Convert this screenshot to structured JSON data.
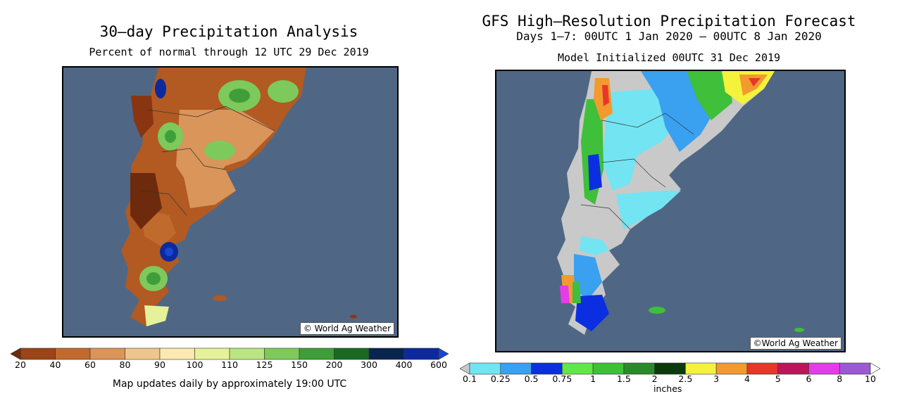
{
  "left_panel": {
    "title": "30–day Precipitation Analysis",
    "subtitle": "Percent of normal through 12 UTC 29 Dec 2019",
    "credit": "© World Ag Weather",
    "legend_labels": [
      "20",
      "40",
      "60",
      "80",
      "90",
      "100",
      "110",
      "125",
      "150",
      "200",
      "300",
      "400",
      "600"
    ],
    "legend_colors": [
      "#6e2a0c",
      "#9a4417",
      "#c06a2e",
      "#d9955a",
      "#efc58e",
      "#fbe9b0",
      "#e6f29a",
      "#b9e582",
      "#7dc95c",
      "#3f9e3a",
      "#1c6a22",
      "#08244f",
      "#0c2a9e",
      "#1746d4"
    ],
    "footer": "Map updates daily by approximately 19:00 UTC"
  },
  "right_panel": {
    "title": "GFS High–Resolution Precipitation Forecast",
    "subtitle": "Days 1–7: 00UTC 1 Jan 2020 – 00UTC 8 Jan 2020",
    "init_line": "Model Initialized 00UTC 31 Dec 2019",
    "credit": "©World Ag Weather",
    "legend_labels": [
      "0.1",
      "0.25",
      "0.5",
      "0.75",
      "1",
      "1.5",
      "2",
      "2.5",
      "3",
      "4",
      "5",
      "6",
      "8",
      "10"
    ],
    "legend_colors": [
      "#c9c9c9",
      "#73e4f2",
      "#3aa0f0",
      "#0b2fe0",
      "#62e64a",
      "#3fbf3a",
      "#2a8a2a",
      "#0c3a0c",
      "#f4f23a",
      "#f29a2e",
      "#e8362a",
      "#c0145a",
      "#e63ce8",
      "#9a5ad2",
      "#ffffff"
    ],
    "units": "inches"
  },
  "colors": {
    "ocean": "#4f6784"
  }
}
